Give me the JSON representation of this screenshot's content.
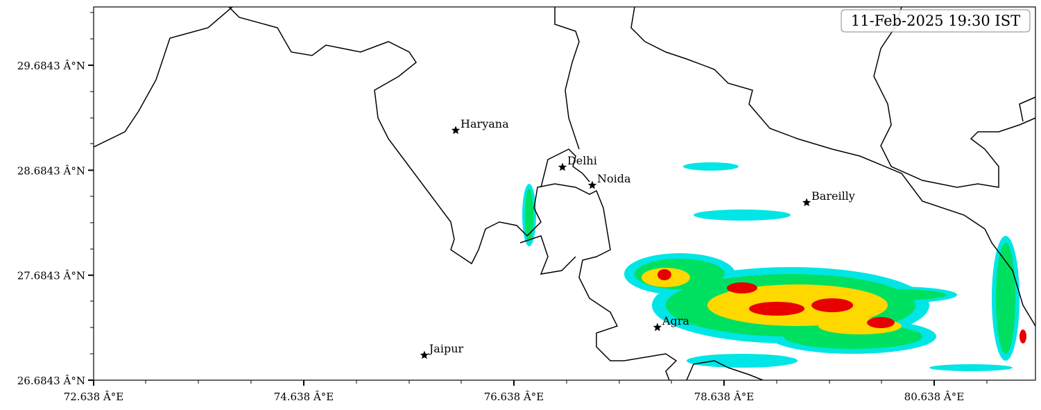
{
  "chart_data": {
    "type": "map",
    "timestamp": "11-Feb-2025 19:30 IST",
    "xlim": [
      72.638,
      81.602
    ],
    "ylim": [
      26.6843,
      30.24
    ],
    "xticks": [
      {
        "value": 72.638,
        "label": "72.638 Â°E"
      },
      {
        "value": 74.638,
        "label": "74.638 Â°E"
      },
      {
        "value": 76.638,
        "label": "76.638 Â°E"
      },
      {
        "value": 78.638,
        "label": "78.638 Â°E"
      },
      {
        "value": 80.638,
        "label": "80.638 Â°E"
      }
    ],
    "yticks": [
      {
        "value": 26.6843,
        "label": "26.6843 Â°N"
      },
      {
        "value": 27.6843,
        "label": "27.6843 Â°N"
      },
      {
        "value": 28.6843,
        "label": "28.6843 Â°N"
      },
      {
        "value": 29.6843,
        "label": "29.6843 Â°N"
      }
    ],
    "cities": [
      {
        "name": "Haryana",
        "lon": 76.084,
        "lat": 29.064
      },
      {
        "name": "Delhi",
        "lon": 77.1,
        "lat": 28.713
      },
      {
        "name": "Noida",
        "lon": 77.384,
        "lat": 28.541
      },
      {
        "name": "Bareilly",
        "lon": 79.424,
        "lat": 28.376
      },
      {
        "name": "Agra",
        "lon": 78.004,
        "lat": 27.187
      },
      {
        "name": "Jaipur",
        "lon": 75.786,
        "lat": 26.922
      }
    ]
  }
}
